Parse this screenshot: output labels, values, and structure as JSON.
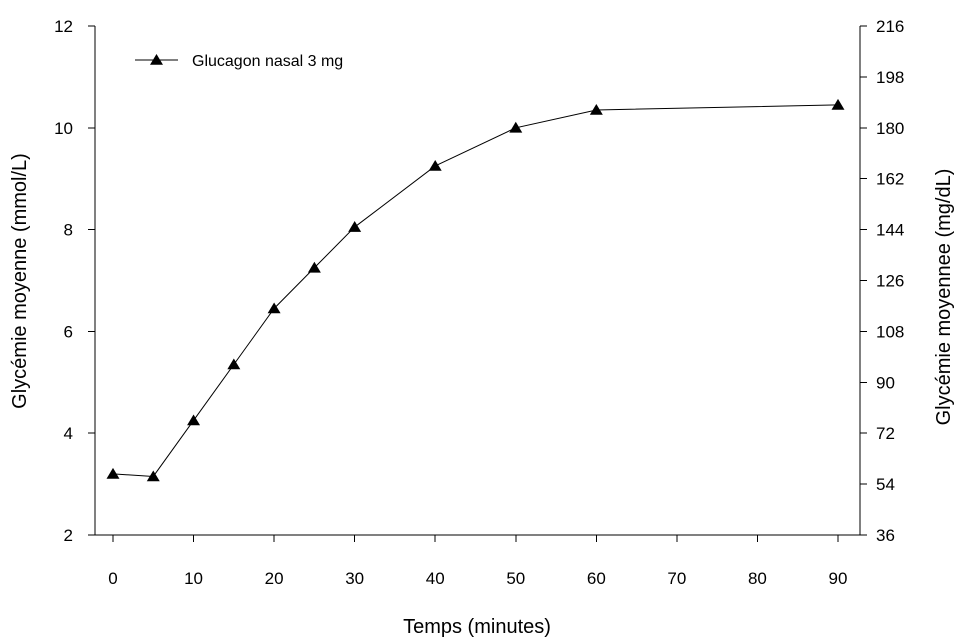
{
  "chart_data": {
    "type": "line",
    "xlabel": "Temps (minutes)",
    "ylabel": "Glycémie moyenne (mmol/L)",
    "y2label": "Glycémie moyennee (mg/dL)",
    "xlim": [
      0,
      90
    ],
    "xticks": [
      0,
      10,
      20,
      30,
      40,
      50,
      60,
      70,
      80,
      90
    ],
    "ylim": [
      2,
      12
    ],
    "yticks": [
      2,
      4,
      6,
      8,
      10,
      12
    ],
    "y2lim": [
      36,
      216
    ],
    "y2ticks": [
      36,
      54,
      72,
      90,
      108,
      126,
      144,
      162,
      180,
      198,
      216
    ],
    "grid": false,
    "legend_position": "top-left",
    "series": [
      {
        "name": "Glucagon nasal 3 mg",
        "marker": "triangle",
        "color": "#000000",
        "x": [
          0,
          5,
          10,
          15,
          20,
          25,
          30,
          40,
          50,
          60,
          90
        ],
        "y": [
          3.2,
          3.15,
          4.25,
          5.35,
          6.45,
          7.25,
          8.05,
          9.25,
          10.0,
          10.35,
          10.45
        ]
      }
    ]
  }
}
